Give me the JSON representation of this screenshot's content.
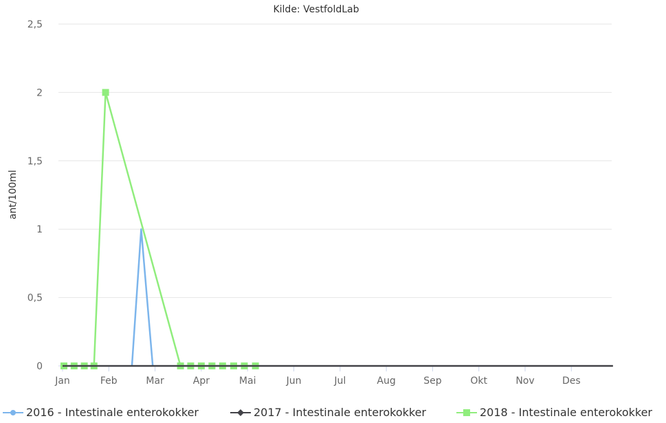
{
  "chart_data": {
    "type": "line",
    "title": "Kilde: VestfoldLab",
    "xlabel": "",
    "ylabel": "ant/100ml",
    "ylim": [
      0,
      2.5
    ],
    "yticks": [
      "0",
      "0,5",
      "1",
      "1,5",
      "2",
      "2,5"
    ],
    "ytick_values": [
      0,
      0.5,
      1,
      1.5,
      2,
      2.5
    ],
    "xlim": [
      1,
      12.9
    ],
    "categories": [
      "Jan",
      "Feb",
      "Mar",
      "Apr",
      "Mai",
      "Jun",
      "Jul",
      "Aug",
      "Sep",
      "Okt",
      "Nov",
      "Des"
    ],
    "grid": true,
    "legend_position": "bottom",
    "series": [
      {
        "name": "2016 - Intestinale enterokokker",
        "color": "#7cb5ec",
        "marker": "circle",
        "points": [
          [
            2.5,
            0
          ],
          [
            2.7,
            1
          ],
          [
            2.95,
            0
          ]
        ]
      },
      {
        "name": "2017 - Intestinale enterokokker",
        "color": "#434348",
        "marker": "diamond",
        "points": [
          [
            1.0,
            0
          ],
          [
            12.9,
            0
          ]
        ]
      },
      {
        "name": "2018 - Intestinale enterokokker",
        "color": "#90ed7d",
        "marker": "square",
        "show_markers": true,
        "points": [
          [
            1.03,
            0
          ],
          [
            1.25,
            0
          ],
          [
            1.47,
            0
          ],
          [
            1.68,
            0
          ],
          [
            1.93,
            2
          ],
          [
            3.55,
            0
          ],
          [
            3.77,
            0
          ],
          [
            4.0,
            0
          ],
          [
            4.23,
            0
          ],
          [
            4.46,
            0
          ],
          [
            4.7,
            0
          ],
          [
            4.93,
            0
          ],
          [
            5.17,
            0
          ]
        ]
      }
    ]
  }
}
